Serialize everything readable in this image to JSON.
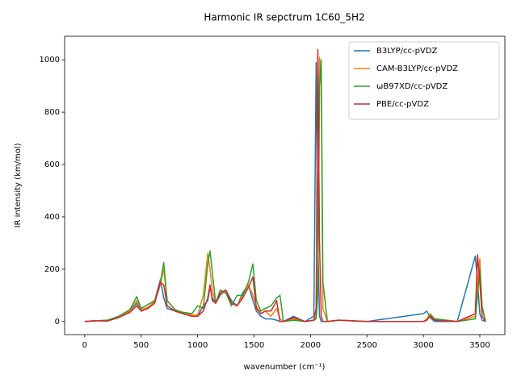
{
  "chart_data": {
    "type": "line",
    "title": "Harmonic IR sepctrum 1C60_5H2",
    "x_label": "wavenumber (cm⁻¹)",
    "y_label": "IR intensity (km/mol)",
    "x": [
      0,
      100,
      200,
      300,
      400,
      460,
      500,
      560,
      620,
      670,
      700,
      730,
      800,
      870,
      950,
      1000,
      1050,
      1090,
      1110,
      1130,
      1160,
      1200,
      1250,
      1300,
      1350,
      1400,
      1450,
      1490,
      1520,
      1560,
      1600,
      1650,
      1700,
      1730,
      1760,
      1850,
      1950,
      2030,
      2050,
      2065,
      2080,
      2095,
      2110,
      2150,
      2250,
      2500,
      3000,
      3030,
      3060,
      3100,
      3300,
      3460,
      3480,
      3500,
      3520,
      3550
    ],
    "series": [
      {
        "name": "B3LYP/cc-pVDZ",
        "color": "#1f77b4",
        "values": [
          0,
          3,
          2,
          15,
          40,
          70,
          40,
          50,
          80,
          160,
          90,
          50,
          40,
          30,
          20,
          20,
          60,
          80,
          130,
          90,
          70,
          100,
          120,
          80,
          60,
          110,
          140,
          80,
          40,
          20,
          10,
          10,
          5,
          0,
          0,
          20,
          0,
          20,
          990,
          300,
          20,
          0,
          0,
          0,
          5,
          0,
          30,
          40,
          15,
          0,
          0,
          250,
          150,
          30,
          5,
          0
        ]
      },
      {
        "name": "CAM-B3LYP/cc-pVDZ",
        "color": "#ff7f0e",
        "values": [
          0,
          3,
          2,
          15,
          40,
          80,
          45,
          55,
          75,
          140,
          200,
          80,
          45,
          35,
          25,
          25,
          100,
          260,
          200,
          120,
          70,
          110,
          110,
          70,
          60,
          100,
          140,
          100,
          60,
          30,
          40,
          20,
          50,
          10,
          0,
          10,
          0,
          5,
          20,
          200,
          1010,
          900,
          50,
          0,
          5,
          0,
          0,
          10,
          30,
          10,
          0,
          20,
          150,
          240,
          50,
          0
        ]
      },
      {
        "name": "ωB97XD/cc-pVDZ",
        "color": "#2ca02c",
        "values": [
          0,
          3,
          5,
          20,
          45,
          95,
          50,
          65,
          80,
          150,
          225,
          80,
          45,
          35,
          30,
          60,
          50,
          220,
          270,
          190,
          70,
          120,
          110,
          60,
          100,
          100,
          150,
          220,
          80,
          40,
          50,
          60,
          90,
          100,
          0,
          5,
          0,
          5,
          10,
          100,
          900,
          1000,
          150,
          0,
          5,
          0,
          0,
          5,
          25,
          10,
          0,
          10,
          100,
          200,
          60,
          0
        ]
      },
      {
        "name": "PBE/cc-pVDZ",
        "color": "#d62728",
        "values": [
          0,
          3,
          2,
          15,
          35,
          60,
          40,
          50,
          70,
          150,
          140,
          60,
          40,
          30,
          20,
          20,
          40,
          90,
          140,
          80,
          70,
          110,
          120,
          70,
          60,
          90,
          130,
          170,
          50,
          30,
          40,
          40,
          80,
          0,
          0,
          15,
          0,
          5,
          50,
          1040,
          300,
          20,
          0,
          0,
          5,
          0,
          0,
          5,
          20,
          5,
          0,
          30,
          255,
          150,
          20,
          0
        ]
      }
    ],
    "xlim": [
      -178,
      3722
    ],
    "ylim": [
      -50,
      1090
    ],
    "xticks": [
      0,
      500,
      1000,
      1500,
      2000,
      2500,
      3000,
      3500
    ],
    "yticks": [
      0,
      200,
      400,
      600,
      800,
      1000
    ],
    "legend": "upper right"
  }
}
